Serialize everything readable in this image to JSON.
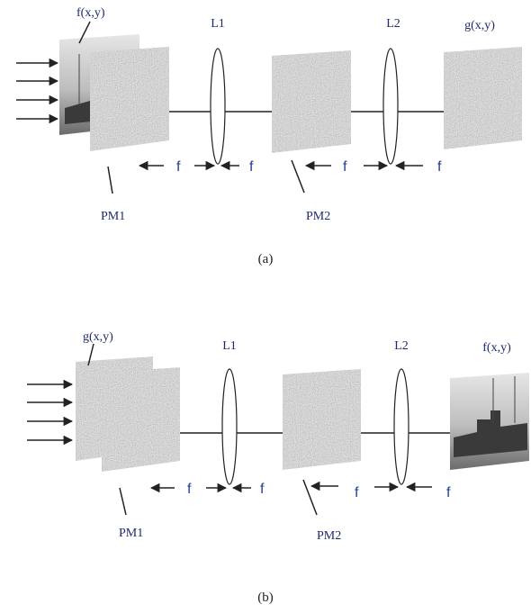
{
  "panel_a": {
    "input_label": "f(x,y)",
    "lens1": "L1",
    "lens2": "L2",
    "output_label": "g(x,y)",
    "focal_labels": [
      "f",
      "f",
      "f",
      "f"
    ],
    "mask1": "PM1",
    "mask2": "PM2",
    "caption": "(a)"
  },
  "panel_b": {
    "input_label": "g(x,y)",
    "lens1": "L1",
    "lens2": "L2",
    "output_label": "f(x,y)",
    "focal_labels": [
      "f",
      "f",
      "f",
      "f"
    ],
    "mask1": "PM1",
    "mask2": "PM2",
    "caption": "(b)"
  }
}
